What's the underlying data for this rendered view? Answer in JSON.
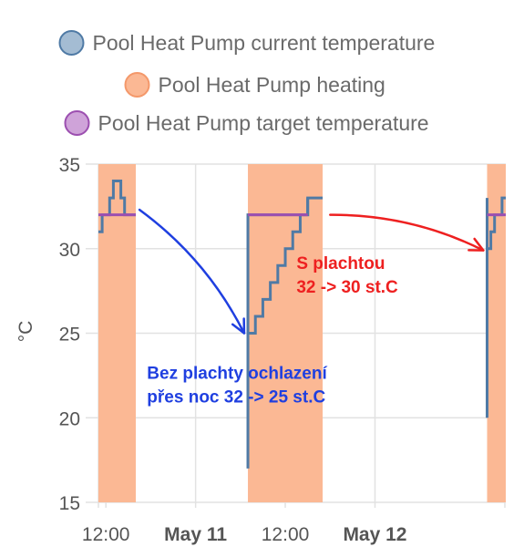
{
  "chart_data": {
    "type": "line",
    "ylabel": "°C",
    "ylim": [
      15,
      35
    ],
    "yticks": [
      15,
      20,
      25,
      30,
      35
    ],
    "x_range": [
      "2024-05-10T11:00",
      "2024-05-12T17:30"
    ],
    "x_ticks": [
      {
        "t": "2024-05-10T12:00",
        "label": "12:00",
        "bold": false
      },
      {
        "t": "2024-05-11T00:00",
        "label": "May 11",
        "bold": true
      },
      {
        "t": "2024-05-11T12:00",
        "label": "12:00",
        "bold": false
      },
      {
        "t": "2024-05-12T00:00",
        "label": "May 12",
        "bold": true
      }
    ],
    "grid": true,
    "legend_position": "top",
    "series": [
      {
        "name": "Pool Heat Pump current temperature",
        "color": "#4f7aa5",
        "fill": "#a4bcd3",
        "kind": "step",
        "segments": [
          [
            [
              "2024-05-10T11:00",
              31
            ],
            [
              "2024-05-10T11:30",
              32
            ],
            [
              "2024-05-10T12:30",
              33
            ],
            [
              "2024-05-10T13:00",
              34
            ],
            [
              "2024-05-10T14:00",
              33
            ],
            [
              "2024-05-10T14:30",
              32
            ],
            [
              "2024-05-10T16:00",
              32
            ]
          ],
          [
            [
              "2024-05-11T07:00",
              17
            ],
            [
              "2024-05-11T07:00",
              32
            ],
            [
              "2024-05-11T15:00",
              32
            ],
            [
              "2024-05-11T15:00",
              33
            ],
            [
              "2024-05-11T17:00",
              33
            ]
          ],
          [
            [
              "2024-05-11T07:00",
              25
            ],
            [
              "2024-05-11T08:00",
              26
            ],
            [
              "2024-05-11T09:00",
              27
            ],
            [
              "2024-05-11T10:00",
              28
            ],
            [
              "2024-05-11T11:00",
              29
            ],
            [
              "2024-05-11T12:00",
              30
            ],
            [
              "2024-05-11T13:00",
              31
            ],
            [
              "2024-05-11T14:00",
              32
            ],
            [
              "2024-05-11T15:00",
              33
            ]
          ],
          [
            [
              "2024-05-12T15:00",
              20
            ],
            [
              "2024-05-12T15:00",
              33
            ],
            [
              "2024-05-12T15:00",
              30
            ],
            [
              "2024-05-12T15:30",
              31
            ],
            [
              "2024-05-12T16:00",
              32
            ],
            [
              "2024-05-12T17:00",
              33
            ],
            [
              "2024-05-12T17:30",
              33
            ]
          ]
        ]
      },
      {
        "name": "Pool Heat Pump heating",
        "color": "#f4986a",
        "fill": "#fbb894",
        "kind": "area",
        "on_intervals": [
          [
            "2024-05-10T11:00",
            "2024-05-10T16:00"
          ],
          [
            "2024-05-11T07:00",
            "2024-05-11T17:00"
          ],
          [
            "2024-05-12T15:00",
            "2024-05-12T17:30"
          ]
        ]
      },
      {
        "name": "Pool Heat Pump target temperature",
        "color": "#9c4fb0",
        "fill": "#cfa3d9",
        "kind": "step",
        "segments": [
          [
            [
              "2024-05-10T11:00",
              32
            ],
            [
              "2024-05-10T16:00",
              32
            ]
          ],
          [
            [
              "2024-05-11T07:00",
              32
            ],
            [
              "2024-05-11T15:00",
              32
            ]
          ],
          [
            [
              "2024-05-12T15:00",
              32
            ],
            [
              "2024-05-12T17:30",
              32
            ]
          ]
        ]
      }
    ],
    "annotations": [
      {
        "lines": [
          "Bez plachty ochlazení",
          "přes noc 32 -> 25 st.C"
        ],
        "color": "#1f3fe0",
        "anchor": [
          "2024-05-10T17:30",
          22.3
        ],
        "arrow_from": [
          "2024-05-10T16:30",
          32.3
        ],
        "arrow_to": [
          "2024-05-11T06:30",
          25.0
        ]
      },
      {
        "lines": [
          "S plachtou",
          "32 -> 30 st.C"
        ],
        "color": "#ee2020",
        "anchor": [
          "2024-05-11T13:30",
          28.8
        ],
        "arrow_from": [
          "2024-05-11T18:00",
          32.0
        ],
        "arrow_to": [
          "2024-05-12T14:30",
          29.9
        ]
      }
    ]
  }
}
